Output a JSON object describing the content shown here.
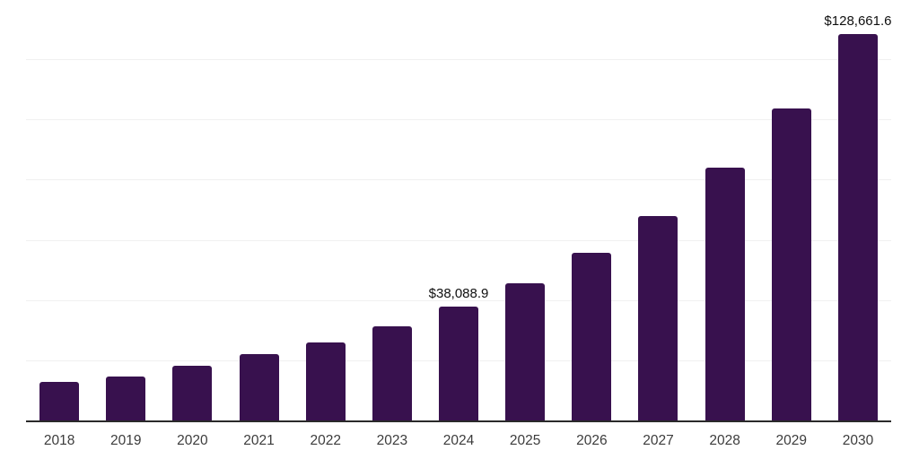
{
  "chart_data": {
    "type": "bar",
    "title": "",
    "xlabel": "",
    "ylabel": "",
    "categories": [
      "2018",
      "2019",
      "2020",
      "2021",
      "2022",
      "2023",
      "2024",
      "2025",
      "2026",
      "2027",
      "2028",
      "2029",
      "2030"
    ],
    "values": [
      13000,
      15000,
      18400,
      22400,
      26100,
      31600,
      38088.9,
      45800,
      56000,
      68300,
      84200,
      104000,
      128661.6
    ],
    "data_labels": [
      "",
      "",
      "",
      "",
      "",
      "",
      "$38,088.9",
      "",
      "",
      "",
      "",
      "",
      "$128,661.6"
    ],
    "ylim": [
      0,
      140000
    ],
    "grid_step": 20000,
    "grid": true,
    "legend": "none",
    "colors": {
      "bar": "#38114E",
      "gridline": "#f0f0f0",
      "axis": "#2a2a2a",
      "year_label": "#3c3c3c",
      "value_label": "#0f0f0f",
      "background": "#ffffff"
    }
  }
}
